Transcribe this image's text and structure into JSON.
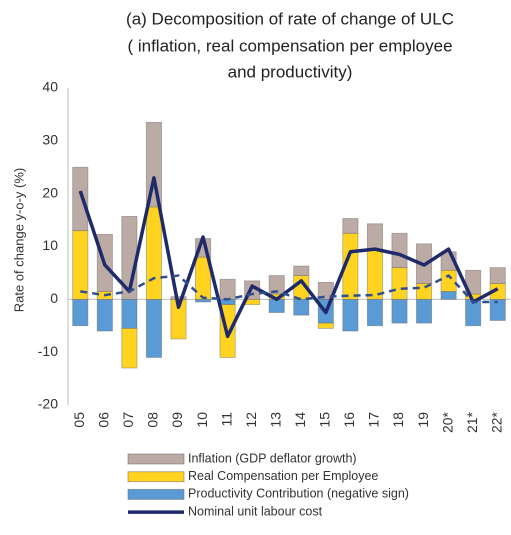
{
  "chart_data": {
    "type": "bar",
    "stacked": true,
    "title": [
      "(a) Decomposition of rate of change of ULC",
      "( inflation, real compensation per employee",
      "and productivity)"
    ],
    "y_label": "Rate of change y-o-y (%)",
    "categories": [
      "05",
      "06",
      "07",
      "08",
      "09",
      "10",
      "11",
      "12",
      "13",
      "14",
      "15",
      "16",
      "17",
      "18",
      "19",
      "20*",
      "21*",
      "22*"
    ],
    "ylim": [
      -20,
      40
    ],
    "yticks": [
      -20,
      -10,
      0,
      10,
      20,
      30,
      40
    ],
    "series": [
      {
        "name": "Inflation (GDP deflator growth)",
        "type": "bar",
        "color": "#bcaaa4",
        "values": [
          12,
          10.8,
          15.7,
          16,
          0.5,
          3.5,
          3.8,
          3.5,
          3.5,
          1.8,
          3.2,
          2.8,
          4.8,
          6.5,
          7.5,
          3.5,
          4.5,
          3
        ]
      },
      {
        "name": "Real Compensation per Employee",
        "type": "bar",
        "color": "#ffd320",
        "values": [
          13,
          1.5,
          -7.5,
          17.5,
          -7.5,
          8,
          -10,
          -1,
          1,
          4.5,
          -1,
          12.5,
          9.5,
          6,
          3,
          4,
          1,
          3
        ]
      },
      {
        "name": "Productivity Contribution (negative sign)",
        "type": "bar",
        "color": "#5b9bd5",
        "values": [
          -5,
          -6,
          -5.5,
          -11,
          0,
          -0.5,
          -1,
          0,
          -2.5,
          -3,
          -4.5,
          -6,
          -5,
          -4.5,
          -4.5,
          1.5,
          -5,
          -4
        ]
      },
      {
        "name": "Nominal unit labour cost",
        "type": "line",
        "color": "#1f2a6b",
        "values": [
          20.5,
          6.5,
          1.5,
          23,
          -1.5,
          11.8,
          -7,
          2.5,
          0,
          3.5,
          -2.5,
          9,
          9.5,
          8.5,
          6.5,
          9.5,
          -0.5,
          2
        ]
      },
      {
        "type": "line",
        "dashed": true,
        "color": "#2f4f8f",
        "values": [
          1.5,
          0.8,
          1.5,
          4,
          4.5,
          0.3,
          0,
          1,
          1.5,
          0,
          0.5,
          0.7,
          0.8,
          2,
          2.2,
          4.5,
          -0.5,
          -0.5
        ]
      }
    ]
  }
}
